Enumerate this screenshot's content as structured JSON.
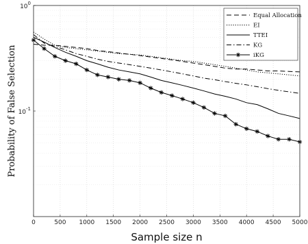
{
  "chart_data": {
    "type": "line",
    "xlabel": "Sample size n",
    "ylabel": "Probability of False Selection",
    "x_ticks": [
      "0",
      "500",
      "1000",
      "1500",
      "2000",
      "2500",
      "3000",
      "3500",
      "4000",
      "4500",
      "5000"
    ],
    "y_ticks": [
      {
        "value": 1,
        "base": "10",
        "exp": "0"
      },
      {
        "value": 0.1,
        "base": "10",
        "exp": "-1"
      }
    ],
    "xlim": [
      0,
      5000
    ],
    "ylim": [
      0.01,
      1
    ],
    "y_scale": "log",
    "grid": true,
    "legend_position": "top-right",
    "x": [
      0,
      200,
      400,
      600,
      800,
      1000,
      1200,
      1400,
      1600,
      1800,
      2000,
      2200,
      2400,
      2600,
      2800,
      3000,
      3200,
      3400,
      3600,
      3800,
      4000,
      4200,
      4400,
      4600,
      4800,
      5000
    ],
    "series": [
      {
        "name": "Equal Allocation",
        "style": "dashed",
        "color": "#000000",
        "values": [
          0.43,
          0.42,
          0.42,
          0.41,
          0.4,
          0.39,
          0.375,
          0.365,
          0.355,
          0.345,
          0.335,
          0.325,
          0.315,
          0.305,
          0.295,
          0.285,
          0.275,
          0.265,
          0.255,
          0.25,
          0.25,
          0.245,
          0.24,
          0.24,
          0.237,
          0.235
        ]
      },
      {
        "name": "EI",
        "style": "dotted",
        "color": "#000000",
        "values": [
          0.56,
          0.48,
          0.42,
          0.4,
          0.39,
          0.38,
          0.37,
          0.36,
          0.35,
          0.345,
          0.34,
          0.33,
          0.32,
          0.31,
          0.3,
          0.295,
          0.285,
          0.275,
          0.265,
          0.255,
          0.245,
          0.235,
          0.23,
          0.225,
          0.22,
          0.215
        ]
      },
      {
        "name": "TTEI",
        "style": "solid",
        "color": "#000000",
        "values": [
          0.5,
          0.45,
          0.4,
          0.36,
          0.33,
          0.3,
          0.28,
          0.26,
          0.245,
          0.235,
          0.225,
          0.21,
          0.195,
          0.185,
          0.175,
          0.165,
          0.155,
          0.145,
          0.138,
          0.13,
          0.12,
          0.115,
          0.105,
          0.095,
          0.09,
          0.085
        ]
      },
      {
        "name": "KG",
        "style": "dashdot",
        "color": "#000000",
        "values": [
          0.53,
          0.44,
          0.41,
          0.38,
          0.35,
          0.33,
          0.31,
          0.295,
          0.285,
          0.275,
          0.265,
          0.255,
          0.245,
          0.235,
          0.225,
          0.215,
          0.205,
          0.198,
          0.19,
          0.183,
          0.177,
          0.17,
          0.163,
          0.157,
          0.152,
          0.147
        ]
      },
      {
        "name": "iKG",
        "style": "solid-star",
        "color": "#000000",
        "values": [
          0.47,
          0.39,
          0.33,
          0.3,
          0.28,
          0.245,
          0.22,
          0.21,
          0.2,
          0.195,
          0.185,
          0.165,
          0.15,
          0.14,
          0.13,
          0.12,
          0.108,
          0.095,
          0.09,
          0.075,
          0.068,
          0.064,
          0.058,
          0.054,
          0.054,
          0.051
        ]
      }
    ]
  }
}
